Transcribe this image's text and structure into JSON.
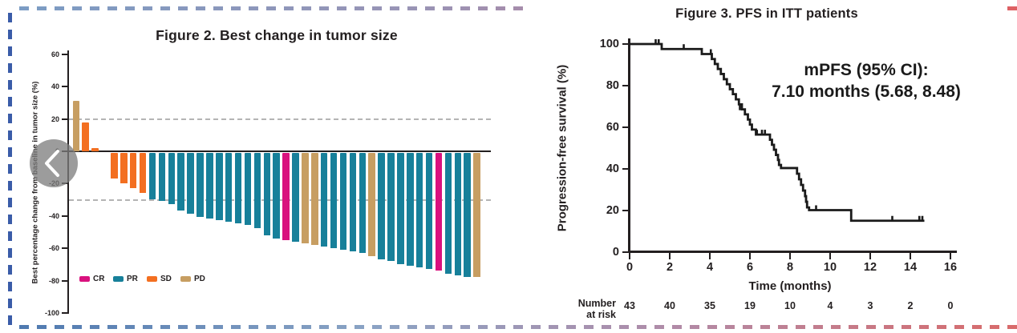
{
  "page": {
    "background": "#ffffff"
  },
  "decoration": {
    "top_border_colors": [
      "#7b9cc4",
      "#9b93b4",
      "#c07f97",
      "#de5f62"
    ],
    "bottom_border_colors": [
      "#4f79b0",
      "#8aa3c4",
      "#b08ba8",
      "#d96a6a"
    ],
    "left_border_color": "#3a5ca8"
  },
  "nav": {
    "prev_button": "previous-slide"
  },
  "colors": {
    "ink": "#231f20",
    "gridline": "#a7a7a7",
    "km_line": "#1a1a1a",
    "CR": "#d9117e",
    "PR": "#17809a",
    "SD": "#f36f21",
    "PD": "#c79e62"
  },
  "chart_data": [
    {
      "id": "waterfall",
      "type": "bar",
      "title": "Figure 2.  Best change in tumor size",
      "xlabel": "",
      "ylabel": "Best percentage change from baseline in tumor size (%)",
      "ylim": [
        -100,
        60
      ],
      "yticks": [
        60,
        40,
        20,
        0,
        -20,
        -40,
        -60,
        -80,
        -100
      ],
      "reference_lines": [
        20,
        -30
      ],
      "grid": "dashed reference lines only",
      "legend_position": "bottom-left inside plot",
      "legend": [
        {
          "label": "CR",
          "color": "#d9117e"
        },
        {
          "label": "PR",
          "color": "#17809a"
        },
        {
          "label": "SD",
          "color": "#f36f21"
        },
        {
          "label": "PD",
          "color": "#c79e62"
        }
      ],
      "bars": [
        {
          "value": 31,
          "response": "PD"
        },
        {
          "value": 18,
          "response": "SD"
        },
        {
          "value": 2,
          "response": "SD"
        },
        {
          "value": 0,
          "response": "SD"
        },
        {
          "value": -16,
          "response": "SD"
        },
        {
          "value": -19,
          "response": "SD"
        },
        {
          "value": -22,
          "response": "SD"
        },
        {
          "value": -25,
          "response": "SD"
        },
        {
          "value": -29,
          "response": "PR"
        },
        {
          "value": -30,
          "response": "PR"
        },
        {
          "value": -32,
          "response": "PR"
        },
        {
          "value": -36,
          "response": "PR"
        },
        {
          "value": -38,
          "response": "PR"
        },
        {
          "value": -40,
          "response": "PR"
        },
        {
          "value": -41,
          "response": "PR"
        },
        {
          "value": -42,
          "response": "PR"
        },
        {
          "value": -43,
          "response": "PR"
        },
        {
          "value": -44,
          "response": "PR"
        },
        {
          "value": -45,
          "response": "PR"
        },
        {
          "value": -47,
          "response": "PR"
        },
        {
          "value": -51,
          "response": "PR"
        },
        {
          "value": -53,
          "response": "PR"
        },
        {
          "value": -54,
          "response": "CR"
        },
        {
          "value": -55,
          "response": "PR"
        },
        {
          "value": -56,
          "response": "PD"
        },
        {
          "value": -57,
          "response": "PD"
        },
        {
          "value": -58,
          "response": "PR"
        },
        {
          "value": -59,
          "response": "PR"
        },
        {
          "value": -60,
          "response": "PR"
        },
        {
          "value": -61,
          "response": "PR"
        },
        {
          "value": -62,
          "response": "PR"
        },
        {
          "value": -64,
          "response": "PD"
        },
        {
          "value": -66,
          "response": "PR"
        },
        {
          "value": -67,
          "response": "PR"
        },
        {
          "value": -69,
          "response": "PR"
        },
        {
          "value": -70,
          "response": "PR"
        },
        {
          "value": -71,
          "response": "PR"
        },
        {
          "value": -72,
          "response": "PR"
        },
        {
          "value": -73,
          "response": "CR"
        },
        {
          "value": -75,
          "response": "PR"
        },
        {
          "value": -76,
          "response": "PR"
        },
        {
          "value": -77,
          "response": "PR"
        },
        {
          "value": -77,
          "response": "PD"
        }
      ]
    },
    {
      "id": "km-pfs",
      "type": "line",
      "title": "Figure 3.  PFS in ITT patients",
      "xlabel": "Time (months)",
      "ylabel": "Progression-free survival (%)",
      "xlim": [
        0,
        16
      ],
      "ylim": [
        0,
        100
      ],
      "xticks": [
        0,
        2,
        4,
        6,
        8,
        10,
        12,
        14,
        16
      ],
      "yticks": [
        100,
        80,
        60,
        40,
        20,
        0
      ],
      "annotation_line1": "mPFS (95% CI):",
      "annotation_line2": "7.10 months (5.68, 8.48)",
      "curve_style": "step",
      "steps": [
        [
          0,
          100
        ],
        [
          1.6,
          97.6
        ],
        [
          3.6,
          95.2
        ],
        [
          4.1,
          92.8
        ],
        [
          4.25,
          90.4
        ],
        [
          4.4,
          88.0
        ],
        [
          4.55,
          85.6
        ],
        [
          4.7,
          83.1
        ],
        [
          4.85,
          80.7
        ],
        [
          5.0,
          78.3
        ],
        [
          5.15,
          75.9
        ],
        [
          5.3,
          73.4
        ],
        [
          5.45,
          71.0
        ],
        [
          5.6,
          68.6
        ],
        [
          5.75,
          66.2
        ],
        [
          5.9,
          63.7
        ],
        [
          6.0,
          61.3
        ],
        [
          6.1,
          58.9
        ],
        [
          6.3,
          56.5
        ],
        [
          7.0,
          54.0
        ],
        [
          7.1,
          51.6
        ],
        [
          7.2,
          49.2
        ],
        [
          7.3,
          46.7
        ],
        [
          7.4,
          44.3
        ],
        [
          7.45,
          41.9
        ],
        [
          7.55,
          40.4
        ],
        [
          8.35,
          37.7
        ],
        [
          8.45,
          35.0
        ],
        [
          8.55,
          32.3
        ],
        [
          8.65,
          29.6
        ],
        [
          8.75,
          26.9
        ],
        [
          8.8,
          24.2
        ],
        [
          8.85,
          21.5
        ],
        [
          8.95,
          20.2
        ],
        [
          11.05,
          15.1
        ]
      ],
      "end_time": 14.7,
      "censor_marks": [
        [
          1.3,
          100
        ],
        [
          1.45,
          100
        ],
        [
          2.7,
          97.6
        ],
        [
          4.05,
          95.2
        ],
        [
          5.5,
          68.6
        ],
        [
          6.35,
          56.5
        ],
        [
          6.6,
          56.5
        ],
        [
          6.75,
          56.5
        ],
        [
          9.3,
          20.2
        ],
        [
          13.1,
          15.1
        ],
        [
          14.45,
          15.1
        ],
        [
          14.6,
          15.1
        ]
      ],
      "number_at_risk": {
        "label_line1": "Number",
        "label_line2": "at risk",
        "values": [
          43,
          40,
          35,
          19,
          10,
          4,
          3,
          2,
          0
        ]
      }
    }
  ]
}
